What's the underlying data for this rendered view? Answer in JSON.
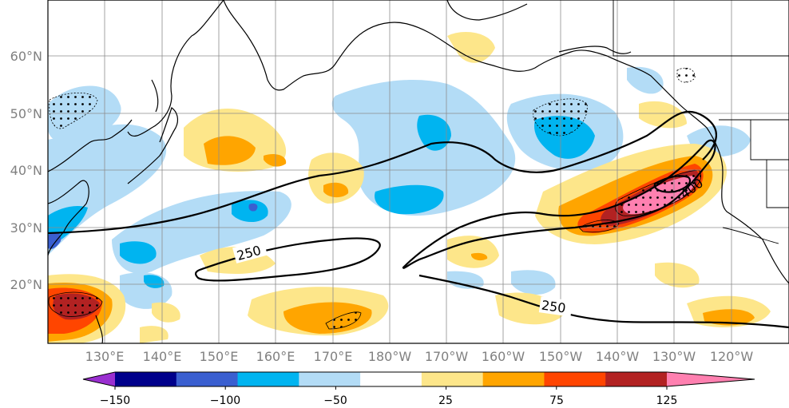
{
  "map": {
    "lat_labels": [
      "60°N",
      "50°N",
      "40°N",
      "30°N",
      "20°N"
    ],
    "lon_labels": [
      "130°E",
      "140°E",
      "150°E",
      "160°E",
      "170°E",
      "180°W",
      "170°W",
      "160°W",
      "150°W",
      "140°W",
      "130°W",
      "120°W"
    ],
    "contour_labels": [
      "250",
      "250",
      "400"
    ]
  },
  "colorbar": {
    "tick_labels": [
      "−150",
      "−100",
      "−50",
      "25",
      "75",
      "125"
    ],
    "colors": [
      "#9a2fd0",
      "#00008b",
      "#3a5fd0",
      "#00b4f0",
      "#b3dcf6",
      "#ffffff",
      "#fde68a",
      "#ffa500",
      "#ff4500",
      "#b22222",
      "#ff80b0"
    ]
  }
}
